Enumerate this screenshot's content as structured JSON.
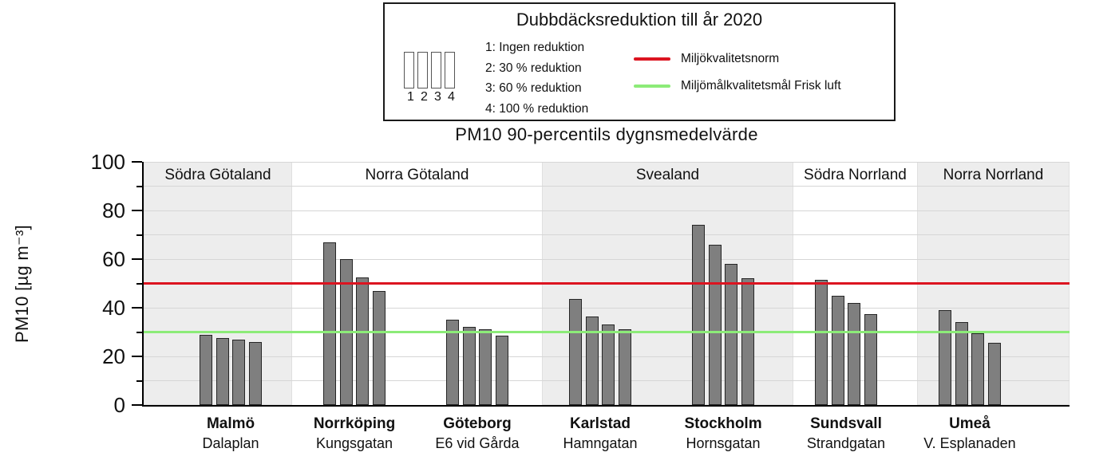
{
  "legend": {
    "title": "Dubbdäcksreduktion till år 2020",
    "scenario_numbers": [
      "1",
      "2",
      "3",
      "4"
    ],
    "scenarios": [
      "1: Ingen reduktion",
      "2: 30 % reduktion",
      "3: 60 % reduktion",
      "4: 100 % reduktion"
    ]
  },
  "chart_data": {
    "type": "bar",
    "title": "PM10 90-percentils dygnsmedelvärde",
    "ylabel": "PM10 [µg m⁻³]",
    "ylim": [
      0,
      100
    ],
    "ytick_values": [
      0,
      20,
      40,
      60,
      80,
      100
    ],
    "gridline_step": 10,
    "grid": true,
    "bar_color": "#7f7f7f",
    "bar_border_color": "#262626",
    "shaded_band_color": "#ededed",
    "series_labels": [
      "1: Ingen reduktion",
      "2: 30 % reduktion",
      "3: 60 % reduktion",
      "4: 100 % reduktion"
    ],
    "regions": [
      {
        "label": "Södra Götaland",
        "shaded": true,
        "span_frac": [
          0.0,
          0.1603
        ]
      },
      {
        "label": "Norra Götaland",
        "shaded": false,
        "span_frac": [
          0.1603,
          0.4302
        ]
      },
      {
        "label": "Svealand",
        "shaded": true,
        "span_frac": [
          0.4302,
          0.7017
        ]
      },
      {
        "label": "Södra Norrland",
        "shaded": false,
        "span_frac": [
          0.7017,
          0.8353
        ]
      },
      {
        "label": "Norra Norrland",
        "shaded": true,
        "span_frac": [
          0.8353,
          1.0
        ]
      }
    ],
    "groups": [
      {
        "city": "Malmö",
        "street": "Dalaplan",
        "region": "Södra Götaland",
        "center_frac": 0.094,
        "values": [
          29,
          27.5,
          27,
          26
        ]
      },
      {
        "city": "Norrköping",
        "street": "Kungsgatan",
        "region": "Norra Götaland",
        "center_frac": 0.2276,
        "values": [
          67,
          60,
          52.5,
          47
        ]
      },
      {
        "city": "Göteborg",
        "street": "E6 vid Gårda",
        "region": "Norra Götaland",
        "center_frac": 0.3603,
        "values": [
          35,
          32,
          31,
          28.5
        ]
      },
      {
        "city": "Karlstad",
        "street": "Hamngatan",
        "region": "Svealand",
        "center_frac": 0.4931,
        "values": [
          43.5,
          36.5,
          33,
          31
        ]
      },
      {
        "city": "Stockholm",
        "street": "Hornsgatan",
        "region": "Svealand",
        "center_frac": 0.6259,
        "values": [
          74,
          66,
          58,
          52
        ]
      },
      {
        "city": "Sundsvall",
        "street": "Strandgatan",
        "region": "Södra Norrland",
        "center_frac": 0.7586,
        "values": [
          51.5,
          45,
          42,
          37.5
        ]
      },
      {
        "city": "Umeå",
        "street": "V. Esplanaden",
        "region": "Norra Norrland",
        "center_frac": 0.8922,
        "values": [
          39,
          34,
          29.5,
          25.5
        ]
      }
    ],
    "reference_lines": [
      {
        "label": "Miljökvalitetsnorm",
        "value": 50,
        "color": "#dc1420"
      },
      {
        "label": "Miljömålkvalitetsmål Frisk luft",
        "value": 30,
        "color": "#8ceb78"
      }
    ]
  }
}
